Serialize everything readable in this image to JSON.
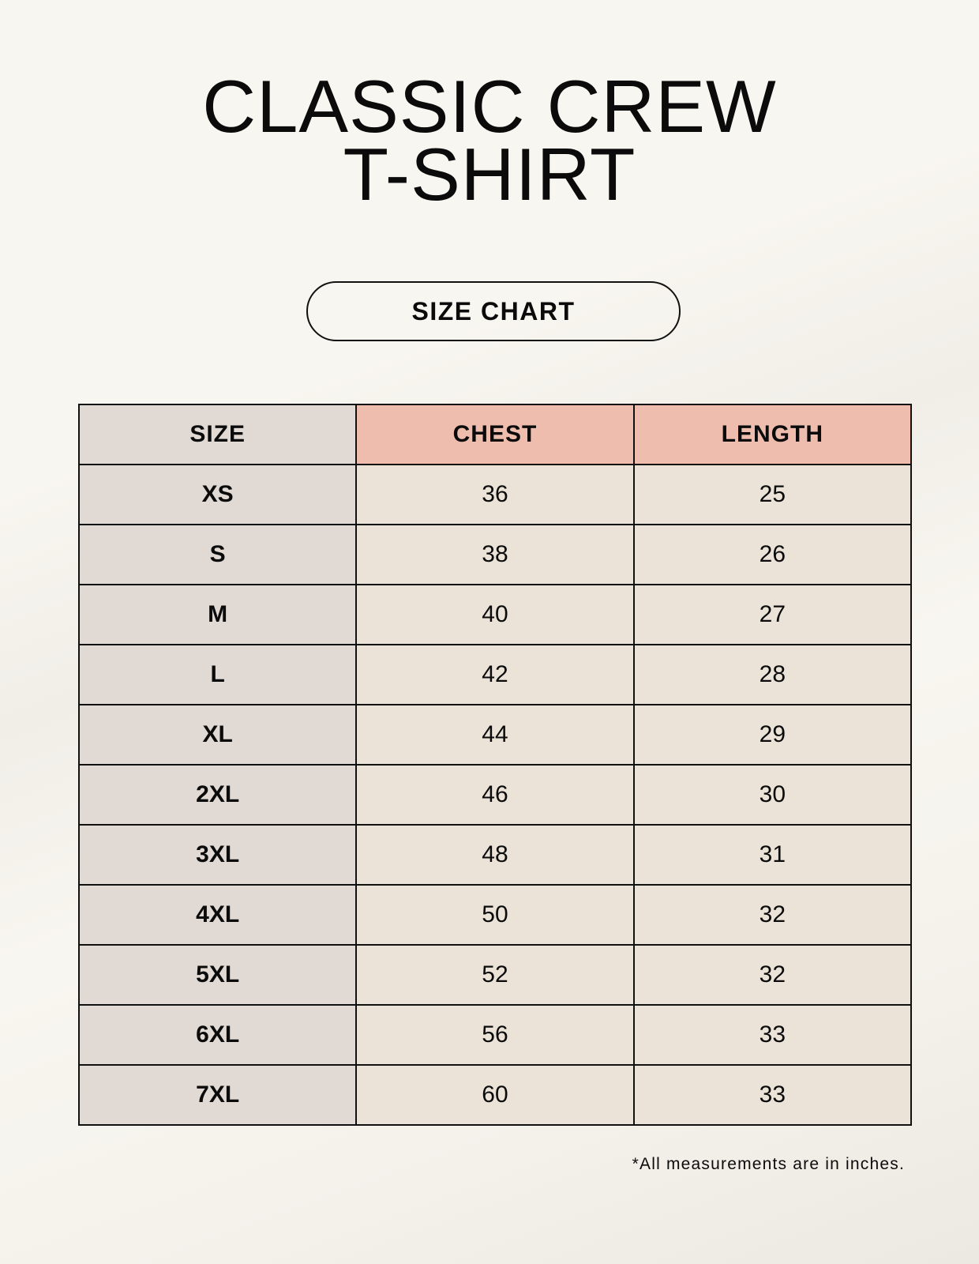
{
  "title_line1": "CLASSIC CREW",
  "title_line2": "T-SHIRT",
  "badge": "SIZE CHART",
  "table": {
    "headers": [
      "SIZE",
      "CHEST",
      "LENGTH"
    ],
    "rows": [
      [
        "XS",
        "36",
        "25"
      ],
      [
        "S",
        "38",
        "26"
      ],
      [
        "M",
        "40",
        "27"
      ],
      [
        "L",
        "42",
        "28"
      ],
      [
        "XL",
        "44",
        "29"
      ],
      [
        "2XL",
        "46",
        "30"
      ],
      [
        "3XL",
        "48",
        "31"
      ],
      [
        "4XL",
        "50",
        "32"
      ],
      [
        "5XL",
        "52",
        "32"
      ],
      [
        "6XL",
        "56",
        "33"
      ],
      [
        "7XL",
        "60",
        "33"
      ]
    ]
  },
  "footnote": "*All measurements are in inches.",
  "colors": {
    "size_column": "#e1d9d3",
    "measure_header": "#eebdae",
    "cells": "#ebe3d8"
  }
}
